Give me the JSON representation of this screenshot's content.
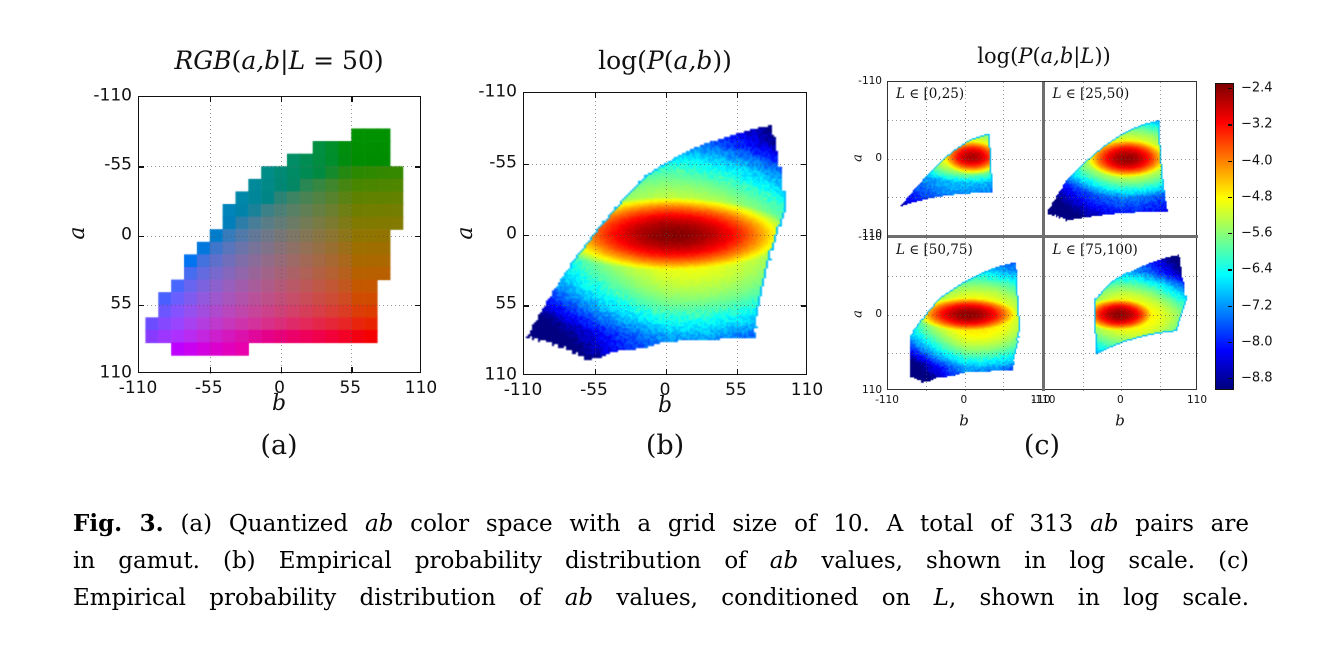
{
  "panels": {
    "a": {
      "title_segments": [
        {
          "t": "RGB",
          "i": true
        },
        {
          "t": "(",
          "i": false
        },
        {
          "t": "a,b",
          "i": true
        },
        {
          "t": "|",
          "i": false
        },
        {
          "t": "L",
          "i": true
        },
        {
          "t": " = 50)",
          "i": false
        }
      ],
      "xlabel": "b",
      "ylabel": "a",
      "sublabel": "(a)",
      "xtick_labels": [
        "-110",
        "-55",
        "0",
        "55",
        "110"
      ],
      "ytick_labels": [
        "-110",
        "-55",
        "0",
        "55",
        "110"
      ]
    },
    "b": {
      "title_segments": [
        {
          "t": "log(",
          "i": false
        },
        {
          "t": "P",
          "i": true
        },
        {
          "t": "(",
          "i": false
        },
        {
          "t": "a,b",
          "i": true
        },
        {
          "t": "))",
          "i": false
        }
      ],
      "xlabel": "b",
      "ylabel": "a",
      "sublabel": "(b)",
      "xtick_labels": [
        "-110",
        "-55",
        "0",
        "55",
        "110"
      ],
      "ytick_labels": [
        "-110",
        "-55",
        "0",
        "55",
        "110"
      ]
    },
    "c": {
      "title_segments": [
        {
          "t": "log(",
          "i": false
        },
        {
          "t": "P",
          "i": true
        },
        {
          "t": "(",
          "i": false
        },
        {
          "t": "a,b",
          "i": true
        },
        {
          "t": "|",
          "i": false
        },
        {
          "t": "L",
          "i": true
        },
        {
          "t": "))",
          "i": false
        }
      ],
      "xlabel": "b",
      "ylabel": "a",
      "sublabel": "(c)",
      "xtick_labels": [
        "-110",
        "0",
        "110"
      ],
      "ytick_labels": [
        "-110",
        "0",
        "110"
      ],
      "subplot_labels": [
        [
          {
            "t": "L",
            "i": true
          },
          {
            "t": " ∈ [0,25)",
            "i": false
          }
        ],
        [
          {
            "t": "L",
            "i": true
          },
          {
            "t": " ∈ [25,50)",
            "i": false
          }
        ],
        [
          {
            "t": "L",
            "i": true
          },
          {
            "t": " ∈ [50,75)",
            "i": false
          }
        ],
        [
          {
            "t": "L",
            "i": true
          },
          {
            "t": " ∈ [75,100)",
            "i": false
          }
        ]
      ],
      "colorbar_tick_labels": [
        "−2.4",
        "−3.2",
        "−4.0",
        "−4.8",
        "−5.6",
        "−6.4",
        "−7.2",
        "−8.0",
        "−8.8"
      ]
    }
  },
  "caption": {
    "segments": [
      {
        "t": "Fig. 3.",
        "b": true
      },
      {
        "t": " (a) Quantized "
      },
      {
        "t": "ab",
        "i": true
      },
      {
        "t": " color space with a grid size of 10. A total of 313 "
      },
      {
        "t": "ab",
        "i": true
      },
      {
        "t": " pairs are",
        "br": true
      },
      {
        "t": "in gamut. (b) Empirical probability distribution of "
      },
      {
        "t": "ab",
        "i": true
      },
      {
        "t": " values, shown in log scale. (c)",
        "br": true
      },
      {
        "t": "Empirical probability distribution of "
      },
      {
        "t": "ab",
        "i": true
      },
      {
        "t": " values, conditioned on "
      },
      {
        "t": "L",
        "i": true
      },
      {
        "t": ", shown in log scale."
      }
    ]
  },
  "chart_data": [
    {
      "id": "a",
      "type": "heatmap",
      "subtype": "quantized_gamut_rgb",
      "title": "RGB(a,b|L=50)",
      "xlabel": "b",
      "ylabel": "a",
      "xlim": [
        -110,
        110
      ],
      "ylim_top_to_bottom": [
        -110,
        110
      ],
      "xticks": [
        -110,
        -55,
        0,
        55,
        110
      ],
      "yticks": [
        -110,
        -55,
        0,
        55,
        110
      ],
      "gridline_positions": [
        -55,
        0,
        55
      ],
      "quantization": {
        "grid_size": 10,
        "L_shown": 50,
        "bins_in_gamut": 313,
        "bin_centers_range": [
          -110,
          110
        ],
        "gamut": "union of sRGB gamut over L in [0,100]"
      }
    },
    {
      "id": "b",
      "type": "heatmap",
      "subtype": "log_probability",
      "title": "log(P(a,b))",
      "xlabel": "b",
      "ylabel": "a",
      "xlim": [
        -110,
        110
      ],
      "ylim_top_to_bottom": [
        -110,
        110
      ],
      "xticks": [
        -110,
        -55,
        0,
        55,
        110
      ],
      "yticks": [
        -110,
        -55,
        0,
        55,
        110
      ],
      "gridline_positions": [
        -55,
        0,
        55
      ],
      "colormap": "jet",
      "value_range": [
        -9.0,
        -2.3
      ],
      "mask": {
        "L_min": 2,
        "L_max": 98,
        "L_step": 3
      },
      "model": {
        "components": [
          {
            "peak": -2.35,
            "b": 6,
            "a": 0,
            "sb": 50,
            "sa": 17
          },
          {
            "peak": -4.7,
            "b": 15,
            "a": 5,
            "sb": 80,
            "sa": 48
          }
        ],
        "bg": {
          "base": -6.35,
          "b": 10,
          "a": 5,
          "k": 2.3,
          "r": 130
        },
        "darken": [
          {
            "type": "corner",
            "sa": 1,
            "sb": -1,
            "k": 0.9
          },
          {
            "type": "corner",
            "sa": -1,
            "sb": 1,
            "k": 0.85
          }
        ],
        "noise": {
          "amp_low": 0.5,
          "amp_high": 0.12,
          "threshold": -6.0
        }
      }
    },
    {
      "id": "c",
      "type": "heatmap_grid",
      "subtype": "log_probability_conditional",
      "title": "log(P(a,b|L))",
      "xlabel": "b",
      "ylabel": "a",
      "xlim": [
        -110,
        110
      ],
      "ylim_top_to_bottom": [
        -110,
        110
      ],
      "xticks": [
        -110,
        0,
        110
      ],
      "yticks": [
        -110,
        0,
        110
      ],
      "gridline_positions": [
        -55,
        0,
        55
      ],
      "colormap": "jet",
      "value_range": [
        -9.0,
        -2.3
      ],
      "colorbar": {
        "ticks": [
          -2.4,
          -3.2,
          -4.0,
          -4.8,
          -5.6,
          -6.4,
          -7.2,
          -8.0,
          -8.8
        ],
        "colormap": "jet"
      },
      "subplots": [
        {
          "label": "L ∈ [0,25)",
          "L_range": [
            0,
            25
          ],
          "mask": {
            "L_min": 3,
            "L_max": 24,
            "L_step": 3
          },
          "model": {
            "components": [
              {
                "peak": -2.6,
                "b": 10,
                "a": -2,
                "sb": 26,
                "sa": 15
              },
              {
                "peak": -4.4,
                "b": 5,
                "a": -5,
                "sb": 55,
                "sa": 28
              }
            ],
            "bg": {
              "base": -6.3,
              "b": 0,
              "a": 0,
              "k": 2.0,
              "r": 130
            },
            "darken": [
              {
                "type": "bottom",
                "start": 0,
                "k": 1.4
              }
            ],
            "noise": {
              "amp_low": 0.5,
              "amp_high": 0.12,
              "threshold": -6.0
            }
          }
        },
        {
          "label": "L ∈ [25,50)",
          "L_range": [
            25,
            50
          ],
          "mask": {
            "L_min": 25,
            "L_max": 49,
            "L_step": 3
          },
          "model": {
            "components": [
              {
                "peak": -2.45,
                "b": 8,
                "a": 0,
                "sb": 34,
                "sa": 17
              },
              {
                "peak": -4.5,
                "b": 10,
                "a": 0,
                "sb": 65,
                "sa": 38
              }
            ],
            "bg": {
              "base": -6.3,
              "b": 5,
              "a": 0,
              "k": 2.1,
              "r": 130
            },
            "darken": [
              {
                "type": "bottom",
                "start": 10,
                "k": 1.5
              },
              {
                "type": "corner",
                "sa": 1,
                "sb": -1,
                "k": 0.5
              }
            ],
            "noise": {
              "amp_low": 0.5,
              "amp_high": 0.12,
              "threshold": -6.0
            }
          }
        },
        {
          "label": "L ∈ [50,75)",
          "L_range": [
            50,
            75
          ],
          "mask": {
            "L_min": 50,
            "L_max": 74,
            "L_step": 3
          },
          "model": {
            "components": [
              {
                "peak": -2.4,
                "b": 5,
                "a": 0,
                "sb": 42,
                "sa": 15
              },
              {
                "peak": -4.5,
                "b": 15,
                "a": 5,
                "sb": 75,
                "sa": 45
              }
            ],
            "bg": {
              "base": -6.35,
              "b": 10,
              "a": 0,
              "k": 2.2,
              "r": 130
            },
            "darken": [
              {
                "type": "corner",
                "sa": 1,
                "sb": -1,
                "k": 1.5
              }
            ],
            "noise": {
              "amp_low": 0.5,
              "amp_high": 0.12,
              "threshold": -6.0
            }
          }
        },
        {
          "label": "L ∈ [75,100)",
          "L_range": [
            75,
            100
          ],
          "mask": {
            "L_min": 75,
            "L_max": 98,
            "L_step": 3
          },
          "model": {
            "components": [
              {
                "peak": -2.4,
                "b": -3,
                "a": 0,
                "sb": 30,
                "sa": 14
              },
              {
                "peak": -4.6,
                "b": 15,
                "a": 0,
                "sb": 70,
                "sa": 40
              }
            ],
            "bg": {
              "base": -6.4,
              "b": 0,
              "a": 0,
              "k": 2.0,
              "r": 130
            },
            "darken": [
              {
                "type": "corner",
                "sa": -1,
                "sb": 1,
                "k": 1.3
              }
            ],
            "noise": {
              "amp_low": 0.5,
              "amp_high": 0.12,
              "threshold": -6.0
            }
          }
        }
      ]
    }
  ]
}
